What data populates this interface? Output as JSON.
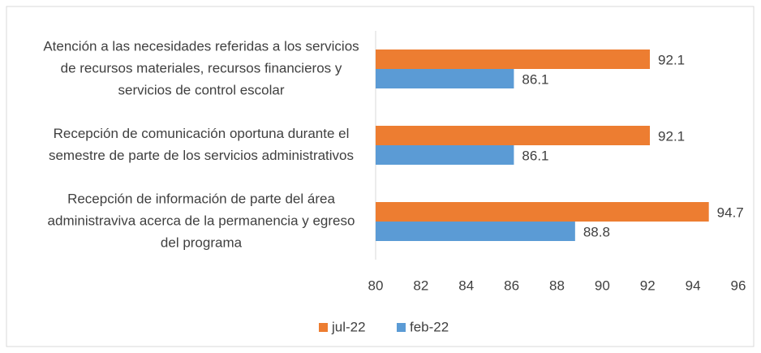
{
  "chart_data": {
    "type": "bar",
    "orientation": "horizontal",
    "categories": [
      "Atención a las necesidades referidas a los servicios de recursos materiales, recursos financieros y servicios de control escolar",
      "Recepción de comunicación oportuna durante el semestre de parte de los servicios administrativos",
      "Recepción de información de parte del área administraviva acerca de la permanencia y egreso del programa"
    ],
    "series": [
      {
        "name": "jul-22",
        "color": "#ed7d31",
        "values": [
          92.1,
          92.1,
          94.7
        ]
      },
      {
        "name": "feb-22",
        "color": "#5b9bd5",
        "values": [
          86.1,
          86.1,
          88.8
        ]
      }
    ],
    "xlim": [
      80,
      96
    ],
    "xticks": [
      80,
      82,
      84,
      86,
      88,
      90,
      92,
      94,
      96
    ],
    "grid": false,
    "legend": "bottom"
  }
}
